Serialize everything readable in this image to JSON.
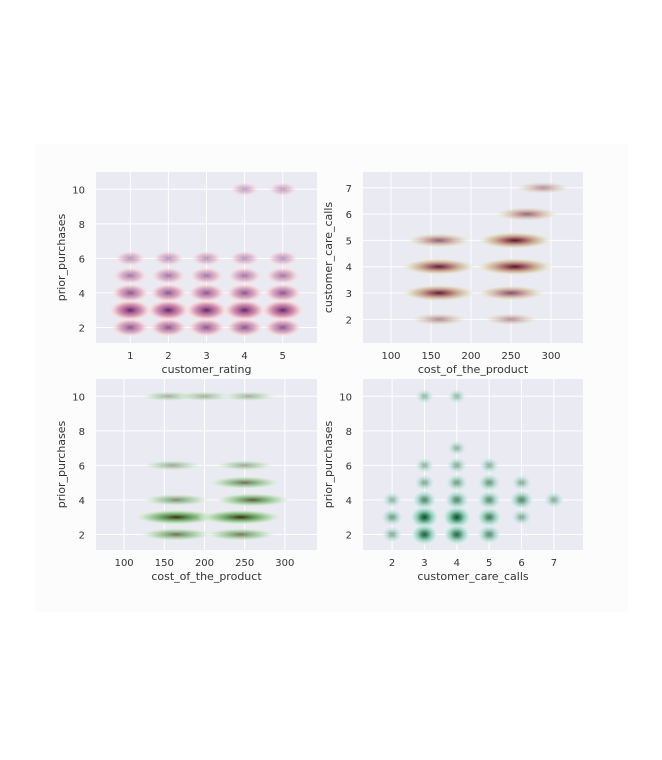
{
  "colors": {
    "plot_background": "#eaeaf2",
    "grid": "#ffffff",
    "tick_text": "#333333",
    "label_text": "#333333"
  },
  "chart_data": [
    {
      "type": "heatmap",
      "subtype": "kde-density",
      "x_column": "customer_rating",
      "y_column": "prior_purchases",
      "xlabel": "customer_rating",
      "ylabel": "prior_purchases",
      "xlim": [
        0.1,
        5.9
      ],
      "ylim": [
        1.1,
        11.0
      ],
      "xticks": [
        1,
        2,
        3,
        4,
        5
      ],
      "yticks": [
        2,
        4,
        6,
        8,
        10
      ],
      "grid": true,
      "colormap": [
        "#fbf0ee",
        "#f0cdd2",
        "#d08aab",
        "#a45f93",
        "#5c2d68"
      ],
      "density_peaks": [
        {
          "x": 1,
          "y": 3,
          "level": 1.0
        },
        {
          "x": 2,
          "y": 3,
          "level": 1.0
        },
        {
          "x": 3,
          "y": 3,
          "level": 1.0
        },
        {
          "x": 4,
          "y": 3,
          "level": 1.0
        },
        {
          "x": 5,
          "y": 3,
          "level": 1.0
        },
        {
          "x": 1,
          "y": 2,
          "level": 0.55
        },
        {
          "x": 2,
          "y": 2,
          "level": 0.55
        },
        {
          "x": 3,
          "y": 2,
          "level": 0.55
        },
        {
          "x": 4,
          "y": 2,
          "level": 0.55
        },
        {
          "x": 5,
          "y": 2,
          "level": 0.55
        },
        {
          "x": 1,
          "y": 4,
          "level": 0.55
        },
        {
          "x": 2,
          "y": 4,
          "level": 0.55
        },
        {
          "x": 3,
          "y": 4,
          "level": 0.55
        },
        {
          "x": 4,
          "y": 4,
          "level": 0.55
        },
        {
          "x": 5,
          "y": 4,
          "level": 0.55
        },
        {
          "x": 1,
          "y": 5,
          "level": 0.32
        },
        {
          "x": 2,
          "y": 5,
          "level": 0.32
        },
        {
          "x": 3,
          "y": 5,
          "level": 0.32
        },
        {
          "x": 4,
          "y": 5,
          "level": 0.32
        },
        {
          "x": 5,
          "y": 5,
          "level": 0.32
        },
        {
          "x": 1,
          "y": 6,
          "level": 0.15
        },
        {
          "x": 2,
          "y": 6,
          "level": 0.15
        },
        {
          "x": 3,
          "y": 6,
          "level": 0.15
        },
        {
          "x": 4,
          "y": 6,
          "level": 0.15
        },
        {
          "x": 5,
          "y": 6,
          "level": 0.15
        },
        {
          "x": 4,
          "y": 10,
          "level": 0.07
        },
        {
          "x": 5,
          "y": 10,
          "level": 0.07
        }
      ]
    },
    {
      "type": "heatmap",
      "subtype": "kde-density",
      "x_column": "cost_of_the_product",
      "y_column": "customer_care_calls",
      "xlabel": "cost_of_the_product",
      "ylabel": "customer_care_calls",
      "xlim": [
        65,
        340
      ],
      "ylim": [
        1.1,
        7.6
      ],
      "xticks": [
        100,
        150,
        200,
        250,
        300
      ],
      "yticks": [
        2,
        3,
        4,
        5,
        6,
        7
      ],
      "grid": true,
      "colormap": [
        "#f4f2e6",
        "#ded8c0",
        "#c7a48e",
        "#9e5a60",
        "#4a1c2c"
      ],
      "density_peaks": [
        {
          "x": 160,
          "y": 2,
          "level": 0.15
        },
        {
          "x": 250,
          "y": 2,
          "level": 0.12
        },
        {
          "x": 160,
          "y": 3,
          "level": 0.8
        },
        {
          "x": 250,
          "y": 3,
          "level": 0.5
        },
        {
          "x": 160,
          "y": 4,
          "level": 0.8
        },
        {
          "x": 255,
          "y": 4,
          "level": 1.0
        },
        {
          "x": 160,
          "y": 5,
          "level": 0.4
        },
        {
          "x": 255,
          "y": 5,
          "level": 0.85
        },
        {
          "x": 270,
          "y": 6,
          "level": 0.35
        },
        {
          "x": 290,
          "y": 7,
          "level": 0.12
        }
      ]
    },
    {
      "type": "heatmap",
      "subtype": "kde-density",
      "x_column": "cost_of_the_product",
      "y_column": "prior_purchases",
      "xlabel": "cost_of_the_product",
      "ylabel": "prior_purchases",
      "xlim": [
        65,
        340
      ],
      "ylim": [
        1.1,
        11.0
      ],
      "xticks": [
        100,
        150,
        200,
        250,
        300
      ],
      "yticks": [
        2,
        4,
        6,
        8,
        10
      ],
      "grid": true,
      "colormap": [
        "#eef6ee",
        "#c9e4c8",
        "#8cbf85",
        "#5a8a4f",
        "#4a2618"
      ],
      "density_peaks": [
        {
          "x": 165,
          "y": 2,
          "level": 0.45
        },
        {
          "x": 245,
          "y": 2,
          "level": 0.4
        },
        {
          "x": 165,
          "y": 3,
          "level": 1.0
        },
        {
          "x": 245,
          "y": 3,
          "level": 0.95
        },
        {
          "x": 165,
          "y": 4,
          "level": 0.3
        },
        {
          "x": 260,
          "y": 4,
          "level": 0.6
        },
        {
          "x": 250,
          "y": 5,
          "level": 0.45
        },
        {
          "x": 160,
          "y": 6,
          "level": 0.1
        },
        {
          "x": 250,
          "y": 6,
          "level": 0.1
        },
        {
          "x": 155,
          "y": 10,
          "level": 0.05
        },
        {
          "x": 200,
          "y": 10,
          "level": 0.05
        },
        {
          "x": 255,
          "y": 10,
          "level": 0.05
        }
      ]
    },
    {
      "type": "heatmap",
      "subtype": "kde-density",
      "x_column": "customer_care_calls",
      "y_column": "prior_purchases",
      "xlabel": "customer_care_calls",
      "ylabel": "prior_purchases",
      "xlim": [
        1.1,
        7.9
      ],
      "ylim": [
        1.1,
        11.0
      ],
      "xticks": [
        2,
        3,
        4,
        5,
        6,
        7
      ],
      "yticks": [
        2,
        4,
        6,
        8,
        10
      ],
      "grid": true,
      "colormap": [
        "#eef8f6",
        "#c4e6df",
        "#8ac9b6",
        "#3f8a66",
        "#174d26"
      ],
      "density_peaks": [
        {
          "x": 3,
          "y": 3,
          "level": 1.0
        },
        {
          "x": 4,
          "y": 3,
          "level": 1.0
        },
        {
          "x": 3,
          "y": 2,
          "level": 0.75
        },
        {
          "x": 4,
          "y": 2,
          "level": 0.7
        },
        {
          "x": 5,
          "y": 3,
          "level": 0.55
        },
        {
          "x": 5,
          "y": 2,
          "level": 0.4
        },
        {
          "x": 3,
          "y": 4,
          "level": 0.45
        },
        {
          "x": 4,
          "y": 4,
          "level": 0.45
        },
        {
          "x": 5,
          "y": 4,
          "level": 0.4
        },
        {
          "x": 6,
          "y": 4,
          "level": 0.45
        },
        {
          "x": 2,
          "y": 3,
          "level": 0.25
        },
        {
          "x": 2,
          "y": 2,
          "level": 0.15
        },
        {
          "x": 2,
          "y": 4,
          "level": 0.1
        },
        {
          "x": 7,
          "y": 4,
          "level": 0.15
        },
        {
          "x": 6,
          "y": 3,
          "level": 0.15
        },
        {
          "x": 6,
          "y": 5,
          "level": 0.12
        },
        {
          "x": 5,
          "y": 5,
          "level": 0.3
        },
        {
          "x": 4,
          "y": 5,
          "level": 0.25
        },
        {
          "x": 3,
          "y": 5,
          "level": 0.15
        },
        {
          "x": 4,
          "y": 6,
          "level": 0.15
        },
        {
          "x": 5,
          "y": 6,
          "level": 0.12
        },
        {
          "x": 3,
          "y": 6,
          "level": 0.08
        },
        {
          "x": 4,
          "y": 7,
          "level": 0.08
        },
        {
          "x": 3,
          "y": 10,
          "level": 0.05
        },
        {
          "x": 4,
          "y": 10,
          "level": 0.05
        }
      ]
    }
  ]
}
